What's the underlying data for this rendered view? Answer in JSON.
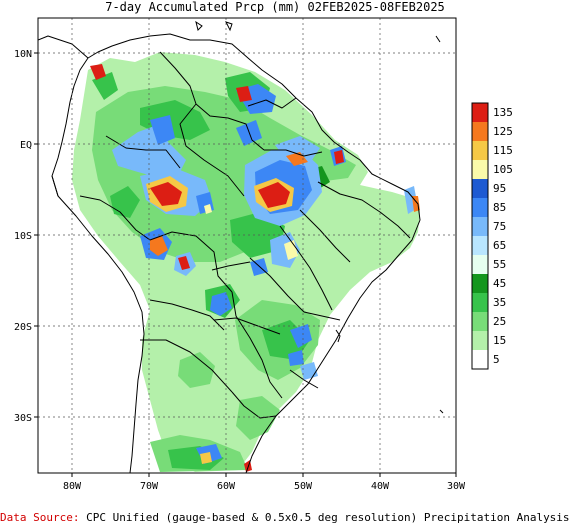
{
  "title": "7-day Accumulated Prcp (mm) 02FEB2025-08FEB2025",
  "axes": {
    "lon_ticks": [
      "80W",
      "70W",
      "60W",
      "50W",
      "40W",
      "30W"
    ],
    "lat_ticks": [
      "10N",
      "EQ",
      "10S",
      "20S",
      "30S"
    ]
  },
  "legend": {
    "levels": [
      "135",
      "125",
      "115",
      "105",
      "95",
      "85",
      "75",
      "65",
      "55",
      "45",
      "35",
      "25",
      "15",
      "5"
    ],
    "colors": [
      "#dc1e14",
      "#f5781e",
      "#f5c846",
      "#fafaaa",
      "#1e5ad2",
      "#3c87f5",
      "#78b9fa",
      "#b9e6ff",
      "#e6fff0",
      "#14961e",
      "#37c34b",
      "#78dc78",
      "#b4f0aa",
      "#ffffff"
    ]
  },
  "source": {
    "label": "Data Source:",
    "text": " CPC Unified (gauge-based & 0.5x0.5 deg resolution) Precipitation Analysis"
  }
}
